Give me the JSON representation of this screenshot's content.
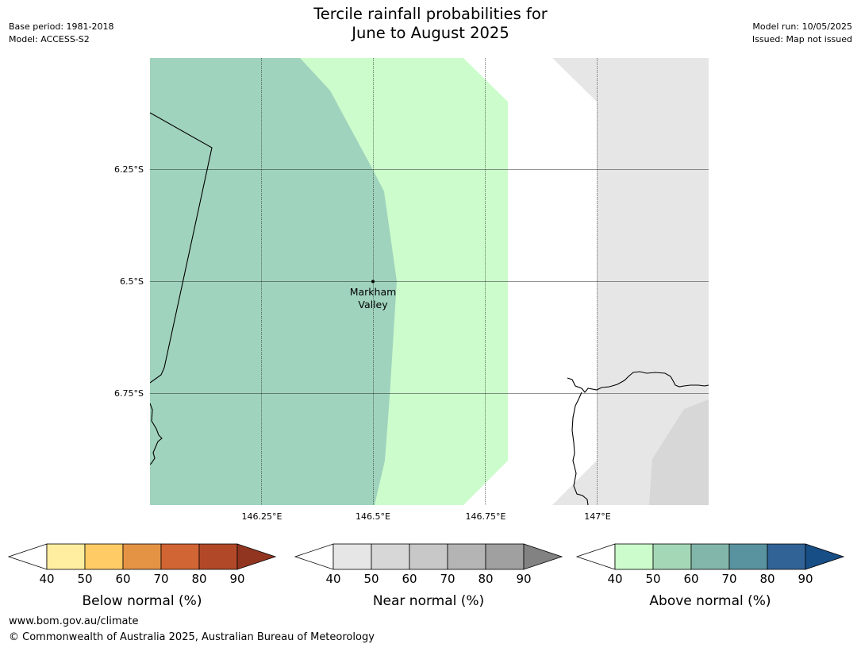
{
  "header": {
    "title_line1": "Tercile rainfall probabilities for",
    "title_line2": "June to August 2025",
    "base_period": "Base period: 1981-2018",
    "model": "Model: ACCESS-S2",
    "model_run": "Model run: 10/05/2025",
    "issued": "Issued: Map not issued"
  },
  "map": {
    "lat_labels": [
      "6.25°S",
      "6.5°S",
      "6.75°S"
    ],
    "lon_labels": [
      "146.25°E",
      "146.5°E",
      "146.75°E",
      "147°E"
    ],
    "place_label_line1": "Markham",
    "place_label_line2": "Valley",
    "regions": {
      "above_normal_50_60": "#a0d3bd",
      "above_normal_40_50": "#ccfccc",
      "near_normal_40_50": "#e6e6e6",
      "near_normal_50_60": "#d7d7d7"
    }
  },
  "colorbars": [
    {
      "name": "below",
      "label": "Below normal (%)",
      "ticks": [
        "40",
        "50",
        "60",
        "70",
        "80",
        "90"
      ],
      "colors": [
        "#ffffff",
        "#ffeea0",
        "#fecb65",
        "#e49345",
        "#d16534",
        "#b14928",
        "#923520"
      ]
    },
    {
      "name": "near",
      "label": "Near normal (%)",
      "ticks": [
        "40",
        "50",
        "60",
        "70",
        "80",
        "90"
      ],
      "colors": [
        "#ffffff",
        "#e6e6e6",
        "#d7d7d7",
        "#c8c8c8",
        "#b4b4b4",
        "#a0a0a0",
        "#828282"
      ]
    },
    {
      "name": "above",
      "label": "Above normal (%)",
      "ticks": [
        "40",
        "50",
        "60",
        "70",
        "80",
        "90"
      ],
      "colors": [
        "#ffffff",
        "#ccfccc",
        "#a4d7b6",
        "#82b6aa",
        "#5a93a0",
        "#316396",
        "#174e86"
      ]
    }
  ],
  "footer": {
    "website": "www.bom.gov.au/climate",
    "copyright": "© Commonwealth of Australia 2025, Australian Bureau of Meteorology"
  }
}
